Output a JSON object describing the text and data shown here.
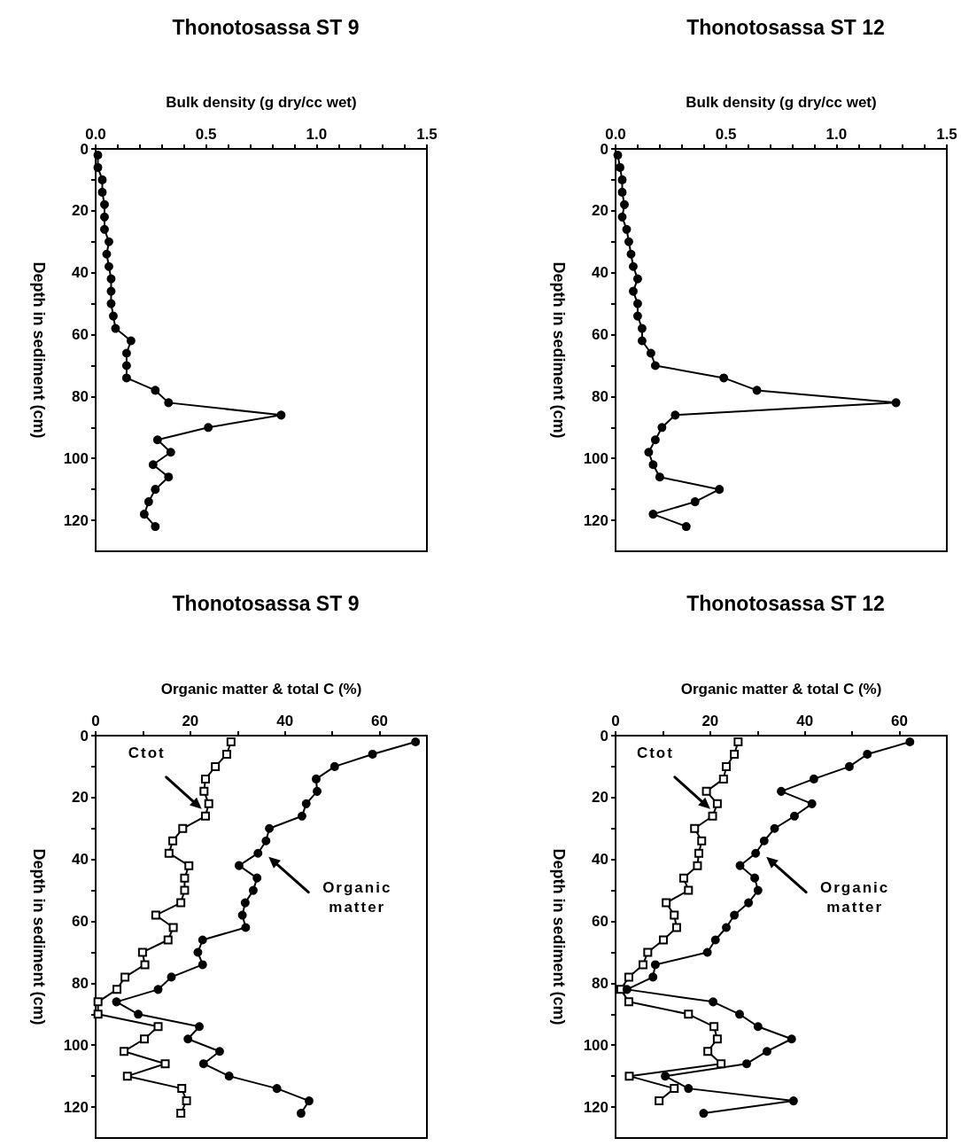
{
  "chart_data": [
    {
      "type": "line",
      "title": "Thonotosassa ST 9",
      "xlabel": "Bulk density (g dry/cc wet)",
      "ylabel": "Depth in sediment (cm)",
      "xlim": [
        0,
        1.5
      ],
      "xticks": [
        {
          "value": 0,
          "label": "0.0"
        },
        {
          "value": 0.1,
          "label": null
        },
        {
          "value": 0.2,
          "label": null
        },
        {
          "value": 0.3,
          "label": null
        },
        {
          "value": 0.4,
          "label": null
        },
        {
          "value": 0.5,
          "label": "0.5"
        },
        {
          "value": 0.6,
          "label": null
        },
        {
          "value": 0.7,
          "label": null
        },
        {
          "value": 0.8,
          "label": null
        },
        {
          "value": 0.9,
          "label": null
        },
        {
          "value": 1,
          "label": "1.0"
        },
        {
          "value": 1.1,
          "label": null
        },
        {
          "value": 1.2,
          "label": null
        },
        {
          "value": 1.3,
          "label": null
        },
        {
          "value": 1.4,
          "label": null
        },
        {
          "value": 1.5,
          "label": "1.5"
        }
      ],
      "ylim": [
        130,
        0
      ],
      "yticks": [
        0,
        {
          "value": 10,
          "label": null
        },
        20,
        {
          "value": 30,
          "label": null
        },
        40,
        {
          "value": 50,
          "label": null
        },
        60,
        {
          "value": 70,
          "label": null
        },
        80,
        {
          "value": 90,
          "label": null
        },
        100,
        {
          "value": 110,
          "label": null
        },
        120
      ],
      "series": [
        {
          "color": "#000000",
          "marker": "circle",
          "x": [
            0.01,
            0.01,
            0.03,
            0.03,
            0.04,
            0.04,
            0.04,
            0.06,
            0.05,
            0.06,
            0.07,
            0.07,
            0.07,
            0.08,
            0.09,
            0.16,
            0.14,
            0.14,
            0.14,
            0.27,
            0.33,
            0.84,
            0.51,
            0.28,
            0.34,
            0.26,
            0.33,
            0.27,
            0.24,
            0.22,
            0.27
          ],
          "values": [
            2,
            6,
            10,
            14,
            18,
            22,
            26,
            30,
            34,
            38,
            42,
            46,
            50,
            54,
            58,
            62,
            66,
            70,
            74,
            78,
            82,
            86,
            90,
            94,
            98,
            102,
            106,
            110,
            114,
            118,
            122
          ]
        }
      ]
    },
    {
      "type": "line",
      "title": "Thonotosassa ST 12",
      "xlabel": "Bulk density (g dry/cc wet)",
      "ylabel": "Depth in sediment (cm)",
      "xlim": [
        0,
        1.5
      ],
      "xticks": [
        {
          "value": 0,
          "label": "0.0"
        },
        {
          "value": 0.1,
          "label": null
        },
        {
          "value": 0.2,
          "label": null
        },
        {
          "value": 0.3,
          "label": null
        },
        {
          "value": 0.4,
          "label": null
        },
        {
          "value": 0.5,
          "label": "0.5"
        },
        {
          "value": 0.6,
          "label": null
        },
        {
          "value": 0.7,
          "label": null
        },
        {
          "value": 0.8,
          "label": null
        },
        {
          "value": 0.9,
          "label": null
        },
        {
          "value": 1,
          "label": "1.0"
        },
        {
          "value": 1.1,
          "label": null
        },
        {
          "value": 1.2,
          "label": null
        },
        {
          "value": 1.3,
          "label": null
        },
        {
          "value": 1.4,
          "label": null
        },
        {
          "value": 1.5,
          "label": "1.5"
        }
      ],
      "ylim": [
        130,
        0
      ],
      "yticks": [
        0,
        {
          "value": 10,
          "label": null
        },
        20,
        {
          "value": 30,
          "label": null
        },
        40,
        {
          "value": 50,
          "label": null
        },
        60,
        {
          "value": 70,
          "label": null
        },
        80,
        {
          "value": 90,
          "label": null
        },
        100,
        {
          "value": 110,
          "label": null
        },
        120
      ],
      "series": [
        {
          "color": "#000000",
          "marker": "circle",
          "x": [
            0.01,
            0.02,
            0.03,
            0.03,
            0.04,
            0.03,
            0.05,
            0.06,
            0.07,
            0.08,
            0.1,
            0.08,
            0.1,
            0.1,
            0.12,
            0.12,
            0.16,
            0.18,
            0.49,
            0.64,
            1.27,
            0.27,
            0.21,
            0.18,
            0.15,
            0.17,
            0.2,
            0.47,
            0.36,
            0.17,
            0.32
          ],
          "values": [
            2,
            6,
            10,
            14,
            18,
            22,
            26,
            30,
            34,
            38,
            42,
            46,
            50,
            54,
            58,
            62,
            66,
            70,
            74,
            78,
            82,
            86,
            90,
            94,
            98,
            102,
            106,
            110,
            114,
            118,
            122
          ]
        }
      ]
    },
    {
      "type": "line",
      "title": "Thonotosassa ST 9",
      "xlabel": "Organic matter & total C (%)",
      "ylabel": "Depth in sediment (cm)",
      "xlim": [
        0,
        70
      ],
      "xticks": [
        0,
        {
          "value": 10,
          "label": null
        },
        20,
        {
          "value": 30,
          "label": null
        },
        40,
        {
          "value": 50,
          "label": null
        },
        60
      ],
      "ylim": [
        130,
        0
      ],
      "yticks": [
        0,
        {
          "value": 10,
          "label": null
        },
        20,
        {
          "value": 30,
          "label": null
        },
        40,
        {
          "value": 50,
          "label": null
        },
        60,
        {
          "value": 70,
          "label": null
        },
        80,
        {
          "value": 90,
          "label": null
        },
        100,
        {
          "value": 110,
          "label": null
        },
        120
      ],
      "series": [
        {
          "name": "Ctot",
          "color": "#000000",
          "marker": "square",
          "x": [
            28.6,
            27.7,
            25.3,
            23.2,
            22.9,
            23.9,
            23.2,
            18.4,
            16.3,
            15.5,
            19.7,
            18.8,
            18.8,
            18,
            12.7,
            16.4,
            15.3,
            9.9,
            10.4,
            6.2,
            4.5,
            0.5,
            0.5,
            13.2,
            10.3,
            6,
            14.7,
            6.7,
            18.2,
            19.2,
            18
          ],
          "values": [
            2,
            6,
            10,
            14,
            18,
            22,
            26,
            30,
            34,
            38,
            42,
            46,
            50,
            54,
            58,
            62,
            66,
            70,
            74,
            78,
            82,
            86,
            90,
            94,
            98,
            102,
            106,
            110,
            114,
            118,
            122
          ]
        },
        {
          "name": "Organic matter",
          "color": "#000000",
          "marker": "circle",
          "x": [
            67.6,
            58.5,
            50.5,
            46.6,
            46.8,
            44.5,
            43.6,
            36.7,
            36,
            34.3,
            30.3,
            34.1,
            33.3,
            31.6,
            31,
            31.7,
            22.6,
            21.6,
            22.6,
            16,
            13.2,
            4.4,
            9,
            21.9,
            19.5,
            26.2,
            22.8,
            28.2,
            38.3,
            45.1,
            43.4
          ],
          "values": [
            2,
            6,
            10,
            14,
            18,
            22,
            26,
            30,
            34,
            38,
            42,
            46,
            50,
            54,
            58,
            62,
            66,
            70,
            74,
            78,
            82,
            86,
            90,
            94,
            98,
            102,
            106,
            110,
            114,
            118,
            122
          ]
        }
      ]
    },
    {
      "type": "line",
      "title": "Thonotosassa ST 12",
      "xlabel": "Organic matter & total C (%)",
      "ylabel": "Depth in sediment (cm)",
      "xlim": [
        0,
        70
      ],
      "xticks": [
        0,
        {
          "value": 10,
          "label": null
        },
        20,
        {
          "value": 30,
          "label": null
        },
        40,
        {
          "value": 50,
          "label": null
        },
        60
      ],
      "ylim": [
        130,
        0
      ],
      "yticks": [
        0,
        {
          "value": 10,
          "label": null
        },
        20,
        {
          "value": 30,
          "label": null
        },
        40,
        {
          "value": 50,
          "label": null
        },
        60,
        {
          "value": 70,
          "label": null
        },
        80,
        {
          "value": 90,
          "label": null
        },
        100,
        {
          "value": 110,
          "label": null
        },
        120
      ],
      "series": [
        {
          "name": "Ctot",
          "color": "#000000",
          "marker": "square",
          "x": [
            25.9,
            25.1,
            23.4,
            22.8,
            19.2,
            21.5,
            20.5,
            16.7,
            18.2,
            17.6,
            17.3,
            14.4,
            15.4,
            10.7,
            12.4,
            12.9,
            10.1,
            6.8,
            5.8,
            2.8,
            1.1,
            2.8,
            15.4,
            20.8,
            21.5,
            19.5,
            22.3,
            2.9,
            12.4,
            9.2
          ],
          "values": [
            2,
            6,
            10,
            14,
            18,
            22,
            26,
            30,
            34,
            38,
            42,
            46,
            50,
            54,
            58,
            62,
            66,
            70,
            74,
            78,
            82,
            86,
            90,
            94,
            98,
            102,
            106,
            110,
            114,
            118
          ]
        },
        {
          "name": "Organic matter",
          "color": "#000000",
          "marker": "circle",
          "x": [
            62.2,
            53.2,
            49.4,
            41.9,
            35,
            41.5,
            37.8,
            33.6,
            31.4,
            29.6,
            26.3,
            29.4,
            30.1,
            28.1,
            25.1,
            23.4,
            21.1,
            19.4,
            8.4,
            7.9,
            2.4,
            20.6,
            26.2,
            30.1,
            37.2,
            32,
            27.7,
            10.5,
            15.4,
            37.6,
            18.6
          ],
          "values": [
            2,
            6,
            10,
            14,
            18,
            22,
            26,
            30,
            34,
            38,
            42,
            46,
            50,
            54,
            58,
            62,
            66,
            70,
            74,
            78,
            82,
            86,
            90,
            94,
            98,
            102,
            106,
            110,
            114,
            118,
            122
          ]
        }
      ]
    }
  ]
}
